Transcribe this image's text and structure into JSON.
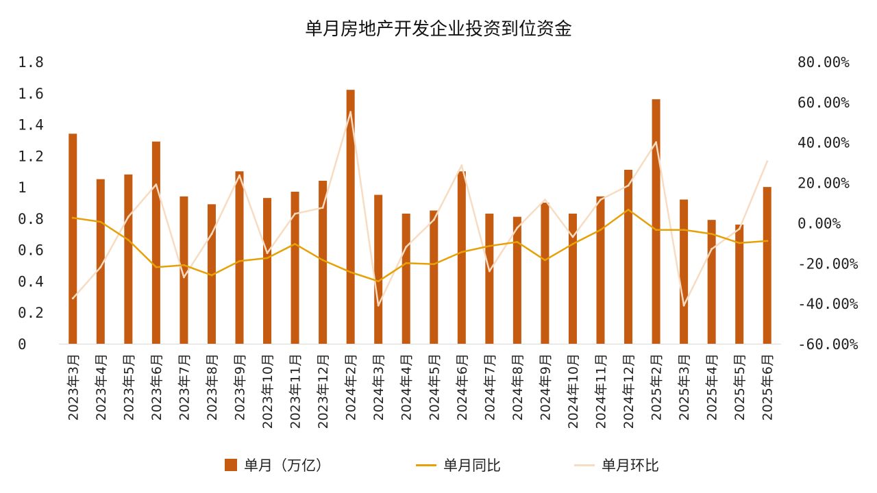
{
  "chart_data": {
    "type": "bar",
    "title": "单月房地产开发企业投资到位资金",
    "categories": [
      "2023年3月",
      "2023年4月",
      "2023年5月",
      "2023年6月",
      "2023年7月",
      "2023年8月",
      "2023年9月",
      "2023年10月",
      "2023年11月",
      "2023年12月",
      "2024年2月",
      "2024年3月",
      "2024年4月",
      "2024年5月",
      "2024年6月",
      "2024年7月",
      "2024年8月",
      "2024年9月",
      "2024年10月",
      "2024年11月",
      "2024年12月",
      "2025年2月",
      "2025年3月",
      "2025年4月",
      "2025年5月",
      "2025年6月"
    ],
    "series": [
      {
        "name": "单月（万亿）",
        "type": "bar",
        "axis": "left",
        "color": "#C55A11",
        "values": [
          1.34,
          1.05,
          1.08,
          1.29,
          0.94,
          0.89,
          1.1,
          0.93,
          0.97,
          1.04,
          1.62,
          0.95,
          0.83,
          0.85,
          1.1,
          0.83,
          0.81,
          0.9,
          0.83,
          0.94,
          1.11,
          1.56,
          0.92,
          0.79,
          0.76,
          1.0
        ]
      },
      {
        "name": "单月同比",
        "type": "line",
        "axis": "right",
        "color": "#E6A008",
        "values": [
          2.5,
          0.5,
          -8.5,
          -22.0,
          -21.0,
          -26.0,
          -19.0,
          -17.5,
          -10.5,
          -18.5,
          -24.5,
          -29.0,
          -20.0,
          -20.5,
          -14.5,
          -11.5,
          -9.5,
          -18.5,
          -10.5,
          -3.5,
          6.5,
          -3.5,
          -3.5,
          -5.5,
          -10.0,
          -9.0
        ]
      },
      {
        "name": "单月环比",
        "type": "line",
        "axis": "right",
        "color": "#F8DCC2",
        "values": [
          -37.5,
          -22.0,
          3.0,
          19.0,
          -27.0,
          -5.5,
          23.5,
          -15.0,
          4.5,
          7.5,
          55.0,
          -41.0,
          -12.0,
          1.5,
          28.5,
          -24.0,
          -2.5,
          11.5,
          -7.0,
          11.5,
          18.5,
          40.0,
          -41.0,
          -13.0,
          -3.0,
          30.5
        ]
      }
    ],
    "y_left": {
      "min": 0,
      "max": 1.8,
      "step": 0.2,
      "ticks": [
        "0",
        "0.2",
        "0.4",
        "0.6",
        "0.8",
        "1",
        "1.2",
        "1.4",
        "1.6",
        "1.8"
      ]
    },
    "y_right": {
      "min": -60,
      "max": 80,
      "step": 20,
      "ticks": [
        "-60.00%",
        "-40.00%",
        "-20.00%",
        "0.00%",
        "20.00%",
        "40.00%",
        "60.00%",
        "80.00%"
      ]
    },
    "grid": false,
    "legend_position": "bottom"
  },
  "legend": {
    "bar_label": "单月（万亿）",
    "yoy_label": "单月同比",
    "mom_label": "单月环比"
  }
}
